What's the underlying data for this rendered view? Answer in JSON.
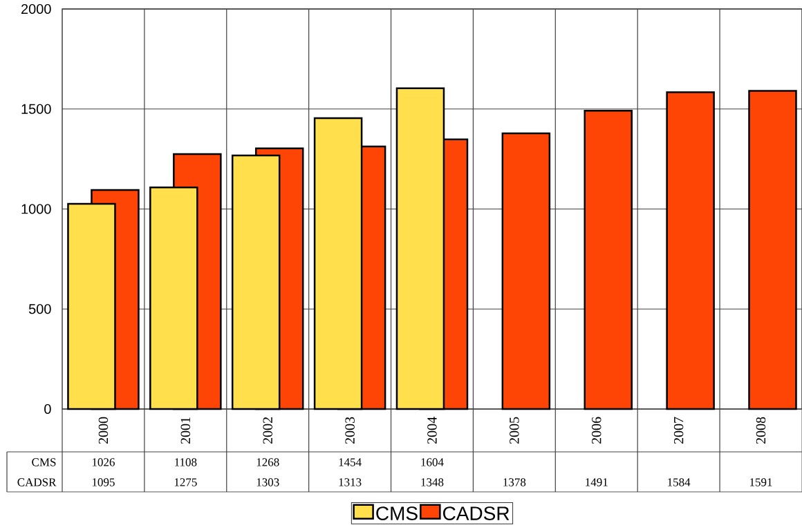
{
  "chart_data": {
    "type": "bar",
    "categories": [
      "2000",
      "2001",
      "2002",
      "2003",
      "2004",
      "2005",
      "2006",
      "2007",
      "2008"
    ],
    "series": [
      {
        "name": "CMS",
        "color": "#ffdf4b",
        "values": [
          1026,
          1108,
          1268,
          1454,
          1604,
          null,
          null,
          null,
          null
        ]
      },
      {
        "name": "CADSR",
        "color": "#ff4506",
        "values": [
          1095,
          1275,
          1303,
          1313,
          1348,
          1378,
          1491,
          1584,
          1591
        ]
      }
    ],
    "ylim": [
      0,
      2000
    ],
    "yticks": [
      0,
      500,
      1000,
      1500,
      2000
    ],
    "grid": true,
    "legend": "bottom",
    "data_labels": true
  }
}
